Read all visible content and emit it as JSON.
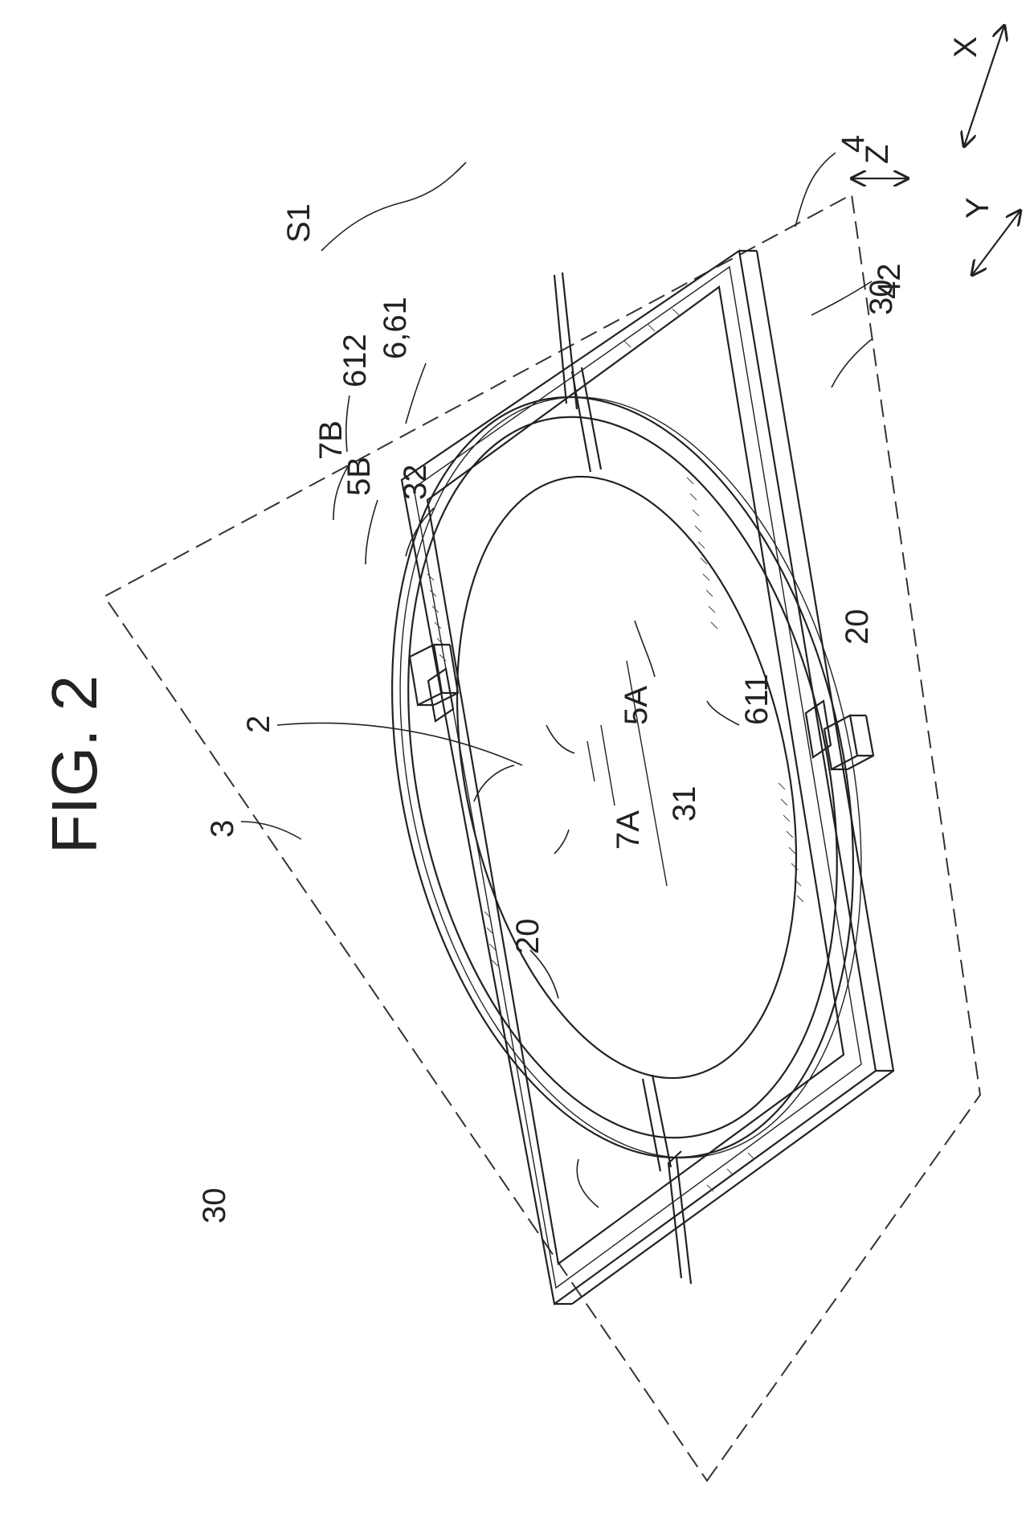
{
  "figure": {
    "title": "FIG. 2",
    "labels": {
      "s1": "S1",
      "r2": "2",
      "r3": "3",
      "r4": "4",
      "r42": "42",
      "r20a": "20",
      "r20b": "20",
      "r30a": "30",
      "r30b": "30",
      "r31": "31",
      "r32": "32",
      "r5a": "5A",
      "r5b": "5B",
      "r7a": "7A",
      "r7b": "7B",
      "r611": "611",
      "r612": "612",
      "r661": "6,61"
    },
    "axes": {
      "x": "X",
      "y": "Y",
      "z": "Z"
    }
  }
}
